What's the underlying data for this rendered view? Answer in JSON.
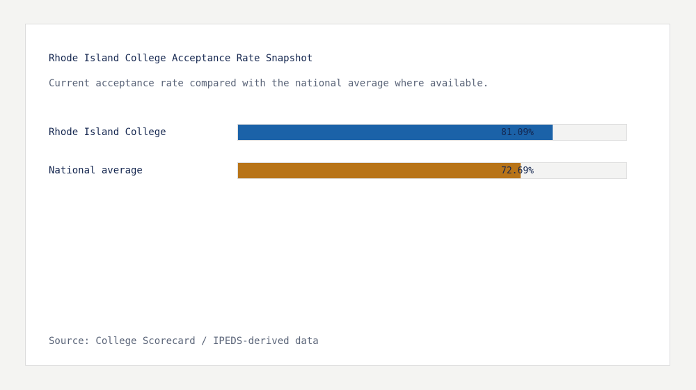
{
  "chart_data": {
    "type": "bar",
    "orientation": "horizontal",
    "title": "Rhode Island College Acceptance Rate Snapshot",
    "subtitle": "Current acceptance rate compared with the national average where available.",
    "categories": [
      "Rhode Island College",
      "National average"
    ],
    "values": [
      81.09,
      72.69
    ],
    "value_labels": [
      "81.09%",
      "72.69%"
    ],
    "colors": [
      "#1b62a8",
      "#b87418"
    ],
    "xlim": [
      0,
      100
    ],
    "grid": false,
    "source": "Source: College Scorecard / IPEDS-derived data"
  },
  "colors": {
    "track": "#f3f3f2",
    "text": "#14264f",
    "muted": "#5a6478"
  }
}
